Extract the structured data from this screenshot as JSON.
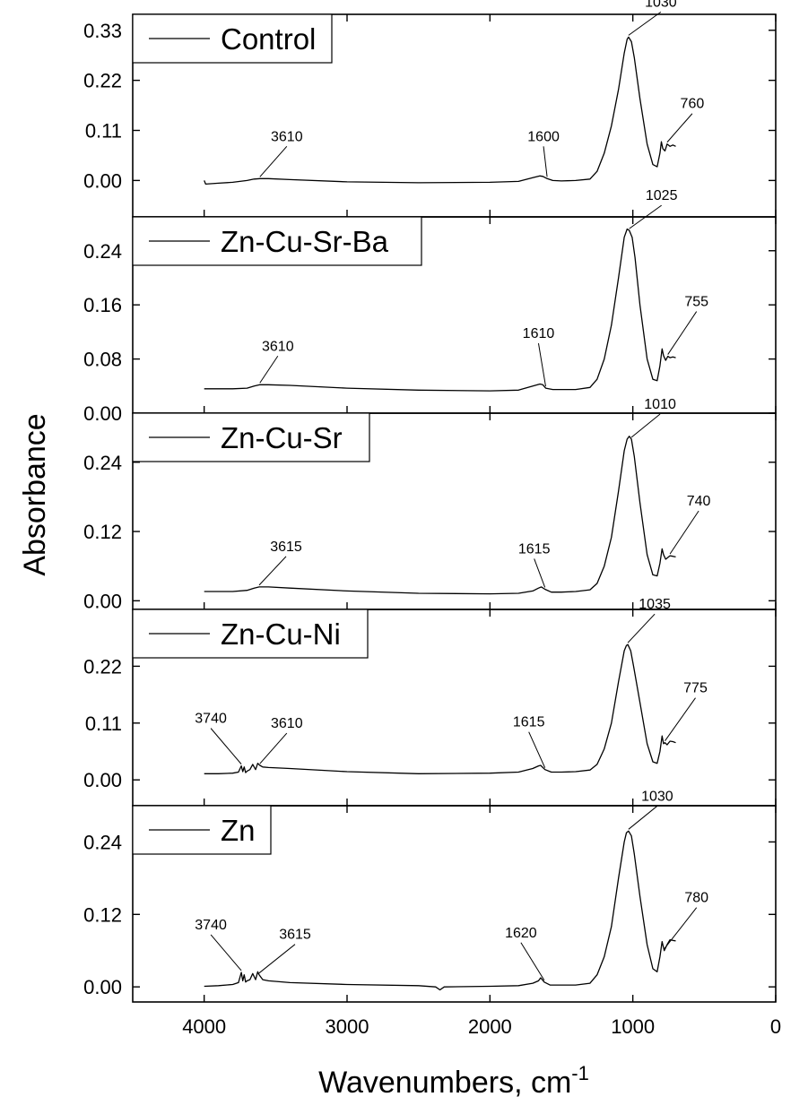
{
  "chart_data": {
    "type": "line",
    "xlabel": "Wavenumbers, cm",
    "xlabel_superscript": "-1",
    "ylabel": "Absorbance",
    "xlim": [
      4500,
      0
    ],
    "xticks": [
      "4000",
      "3000",
      "2000",
      "1000",
      "0"
    ],
    "xtick_values": [
      4000,
      3000,
      2000,
      1000,
      0
    ],
    "legend_placement": "top-left of each panel",
    "panels": [
      {
        "series_name": "Control",
        "ylim": [
          -0.08,
          0.365
        ],
        "yticks": [
          "0.33",
          "0.22",
          "0.11",
          "0.00"
        ],
        "ytick_values": [
          0.33,
          0.22,
          0.11,
          0.0
        ],
        "x": [
          4000,
          3990,
          3900,
          3800,
          3700,
          3650,
          3610,
          3550,
          3400,
          3000,
          2500,
          2000,
          1800,
          1700,
          1650,
          1630,
          1600,
          1560,
          1500,
          1400,
          1300,
          1250,
          1200,
          1150,
          1100,
          1060,
          1040,
          1030,
          1010,
          990,
          950,
          900,
          860,
          830,
          810,
          800,
          790,
          775,
          760,
          740,
          720,
          700
        ],
        "values": [
          0.0,
          -0.008,
          -0.006,
          -0.004,
          0.0,
          0.003,
          0.004,
          0.004,
          0.002,
          -0.003,
          -0.005,
          -0.004,
          -0.002,
          0.006,
          0.01,
          0.009,
          0.004,
          0.0,
          -0.001,
          0.0,
          0.003,
          0.02,
          0.06,
          0.12,
          0.2,
          0.28,
          0.31,
          0.315,
          0.305,
          0.27,
          0.18,
          0.08,
          0.035,
          0.03,
          0.06,
          0.085,
          0.07,
          0.065,
          0.08,
          0.075,
          0.078,
          0.075
        ],
        "annotations": [
          {
            "text": "3610",
            "x": 3610,
            "y": 0.004
          },
          {
            "text": "1600",
            "x": 1600,
            "y": 0.004
          },
          {
            "text": "1030",
            "x": 1030,
            "y": 0.315
          },
          {
            "text": "760",
            "x": 760,
            "y": 0.08
          }
        ]
      },
      {
        "series_name": "Zn-Cu-Sr-Ba",
        "ylim": [
          0.0,
          0.29
        ],
        "yticks": [
          "0.24",
          "0.16",
          "0.08",
          "0.00"
        ],
        "ytick_values": [
          0.24,
          0.16,
          0.08,
          0.0
        ],
        "x": [
          4000,
          3900,
          3800,
          3700,
          3650,
          3610,
          3550,
          3400,
          3000,
          2500,
          2000,
          1800,
          1700,
          1650,
          1630,
          1610,
          1560,
          1500,
          1400,
          1300,
          1250,
          1200,
          1150,
          1100,
          1060,
          1040,
          1025,
          1005,
          985,
          950,
          900,
          860,
          830,
          810,
          795,
          785,
          770,
          755,
          740,
          720,
          700
        ],
        "values": [
          0.036,
          0.036,
          0.036,
          0.037,
          0.04,
          0.042,
          0.042,
          0.041,
          0.037,
          0.034,
          0.033,
          0.034,
          0.04,
          0.043,
          0.042,
          0.037,
          0.035,
          0.035,
          0.035,
          0.038,
          0.05,
          0.08,
          0.13,
          0.2,
          0.26,
          0.272,
          0.27,
          0.26,
          0.23,
          0.16,
          0.08,
          0.05,
          0.048,
          0.07,
          0.095,
          0.085,
          0.078,
          0.084,
          0.082,
          0.083,
          0.082
        ],
        "annotations": [
          {
            "text": "3610",
            "x": 3610,
            "y": 0.042
          },
          {
            "text": "1610",
            "x": 1610,
            "y": 0.037
          },
          {
            "text": "1025",
            "x": 1025,
            "y": 0.27
          },
          {
            "text": "755",
            "x": 755,
            "y": 0.084
          }
        ]
      },
      {
        "series_name": "Zn-Cu-Sr",
        "ylim": [
          -0.015,
          0.325
        ],
        "yticks": [
          "0.24",
          "0.12",
          "0.00"
        ],
        "ytick_values": [
          0.24,
          0.12,
          0.0
        ],
        "x": [
          4000,
          3900,
          3800,
          3700,
          3650,
          3615,
          3550,
          3400,
          3000,
          2500,
          2000,
          1800,
          1700,
          1660,
          1640,
          1615,
          1570,
          1500,
          1400,
          1300,
          1250,
          1200,
          1150,
          1100,
          1060,
          1040,
          1025,
          1010,
          990,
          950,
          900,
          860,
          830,
          810,
          795,
          785,
          770,
          740,
          720,
          700
        ],
        "values": [
          0.016,
          0.016,
          0.016,
          0.018,
          0.022,
          0.024,
          0.024,
          0.022,
          0.017,
          0.013,
          0.012,
          0.013,
          0.017,
          0.022,
          0.024,
          0.02,
          0.015,
          0.015,
          0.016,
          0.019,
          0.03,
          0.06,
          0.11,
          0.19,
          0.26,
          0.28,
          0.285,
          0.28,
          0.25,
          0.17,
          0.08,
          0.045,
          0.043,
          0.065,
          0.09,
          0.08,
          0.072,
          0.078,
          0.077,
          0.076
        ],
        "annotations": [
          {
            "text": "3615",
            "x": 3615,
            "y": 0.024
          },
          {
            "text": "1615",
            "x": 1615,
            "y": 0.02
          },
          {
            "text": "1010",
            "x": 1010,
            "y": 0.28
          },
          {
            "text": "740",
            "x": 740,
            "y": 0.078
          }
        ]
      },
      {
        "series_name": "Zn-Cu-Ni",
        "ylim": [
          -0.05,
          0.33
        ],
        "yticks": [
          "0.22",
          "0.11",
          "0.00"
        ],
        "ytick_values": [
          0.22,
          0.11,
          0.0
        ],
        "x": [
          4000,
          3900,
          3800,
          3760,
          3740,
          3730,
          3720,
          3710,
          3700,
          3680,
          3660,
          3640,
          3625,
          3610,
          3590,
          3550,
          3400,
          3000,
          2500,
          2000,
          1800,
          1700,
          1660,
          1645,
          1615,
          1570,
          1500,
          1400,
          1300,
          1250,
          1200,
          1150,
          1100,
          1060,
          1045,
          1035,
          1015,
          995,
          950,
          900,
          860,
          830,
          810,
          795,
          785,
          775,
          760,
          740,
          720,
          700
        ],
        "values": [
          0.012,
          0.012,
          0.013,
          0.015,
          0.027,
          0.016,
          0.025,
          0.014,
          0.017,
          0.02,
          0.03,
          0.02,
          0.032,
          0.028,
          0.025,
          0.024,
          0.022,
          0.016,
          0.012,
          0.013,
          0.015,
          0.022,
          0.027,
          0.028,
          0.02,
          0.015,
          0.015,
          0.016,
          0.019,
          0.03,
          0.06,
          0.11,
          0.19,
          0.25,
          0.26,
          0.262,
          0.25,
          0.22,
          0.15,
          0.07,
          0.035,
          0.032,
          0.055,
          0.085,
          0.07,
          0.072,
          0.068,
          0.075,
          0.074,
          0.072
        ],
        "annotations": [
          {
            "text": "3740",
            "x": 3740,
            "y": 0.027
          },
          {
            "text": "3610",
            "x": 3610,
            "y": 0.028
          },
          {
            "text": "1615",
            "x": 1615,
            "y": 0.02
          },
          {
            "text": "1035",
            "x": 1035,
            "y": 0.262
          },
          {
            "text": "775",
            "x": 775,
            "y": 0.072
          }
        ]
      },
      {
        "series_name": "Zn",
        "ylim": [
          -0.025,
          0.3
        ],
        "yticks": [
          "0.24",
          "0.12",
          "0.00"
        ],
        "ytick_values": [
          0.24,
          0.12,
          0.0
        ],
        "x": [
          4000,
          3900,
          3800,
          3760,
          3740,
          3730,
          3720,
          3710,
          3700,
          3680,
          3660,
          3640,
          3625,
          3615,
          3590,
          3550,
          3400,
          3000,
          2500,
          2380,
          2350,
          2320,
          2000,
          1800,
          1700,
          1660,
          1645,
          1620,
          1580,
          1500,
          1400,
          1300,
          1250,
          1200,
          1150,
          1100,
          1060,
          1045,
          1030,
          1010,
          990,
          950,
          900,
          860,
          830,
          810,
          795,
          785,
          780,
          760,
          740,
          720,
          700
        ],
        "values": [
          0.001,
          0.002,
          0.004,
          0.007,
          0.024,
          0.01,
          0.02,
          0.008,
          0.01,
          0.012,
          0.022,
          0.012,
          0.025,
          0.02,
          0.012,
          0.01,
          0.007,
          0.004,
          0.002,
          0.0,
          -0.005,
          0.0,
          0.001,
          0.002,
          0.006,
          0.01,
          0.015,
          0.008,
          0.003,
          0.003,
          0.003,
          0.006,
          0.02,
          0.05,
          0.1,
          0.18,
          0.24,
          0.255,
          0.258,
          0.25,
          0.22,
          0.15,
          0.07,
          0.03,
          0.025,
          0.05,
          0.075,
          0.065,
          0.06,
          0.07,
          0.078,
          0.077,
          0.076
        ],
        "annotations": [
          {
            "text": "3740",
            "x": 3740,
            "y": 0.024
          },
          {
            "text": "3615",
            "x": 3615,
            "y": 0.02
          },
          {
            "text": "1620",
            "x": 1620,
            "y": 0.008
          },
          {
            "text": "1030",
            "x": 1030,
            "y": 0.258
          },
          {
            "text": "780",
            "x": 780,
            "y": 0.06
          }
        ]
      }
    ]
  }
}
